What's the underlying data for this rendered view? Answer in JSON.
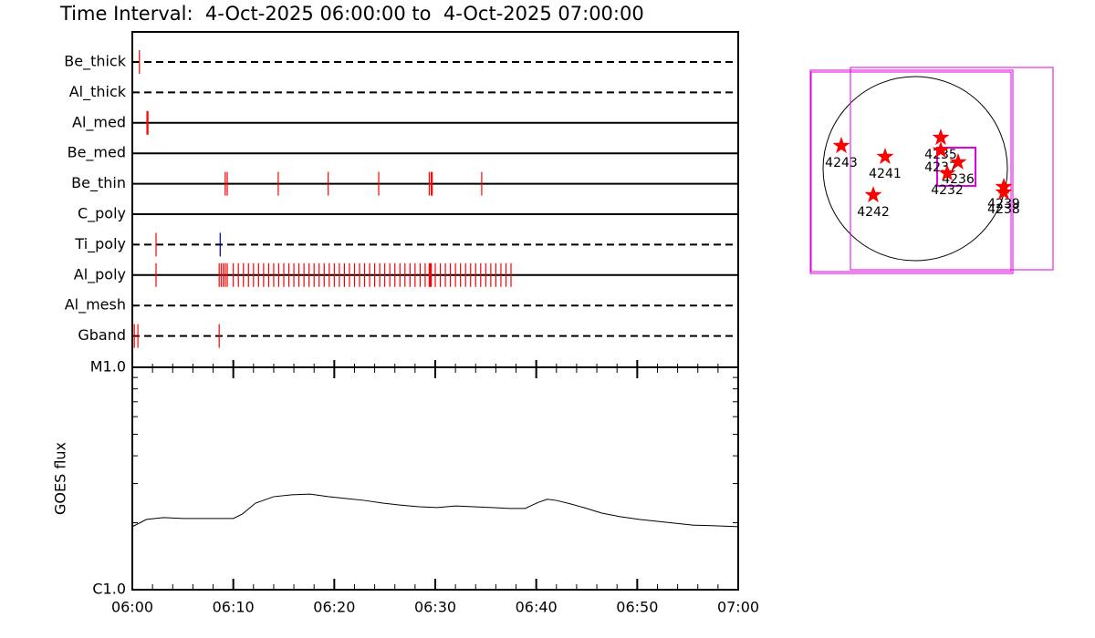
{
  "title": "Time Interval:  4-Oct-2025 06:00:00 to  4-Oct-2025 07:00:00",
  "chart_data": [
    {
      "type": "timeline",
      "xlim": [
        0,
        60
      ],
      "color": "#ff0000",
      "rows": [
        {
          "name": "Be_thick",
          "line": "dashed",
          "events": [
            0.7
          ]
        },
        {
          "name": "Al_thick",
          "line": "dashed",
          "events": []
        },
        {
          "name": "Al_med",
          "line": "solid",
          "events": [
            1.45,
            1.55
          ]
        },
        {
          "name": "Be_med",
          "line": "solid",
          "events": []
        },
        {
          "name": "Be_thin",
          "line": "solid",
          "events": [
            9.2,
            9.4,
            14.45,
            19.4,
            24.4,
            29.4,
            29.6,
            29.7,
            34.6
          ]
        },
        {
          "name": "C_poly",
          "line": "solid",
          "events": []
        },
        {
          "name": "Ti_poly",
          "line": "dashed",
          "events": [
            2.35,
            8.7
          ],
          "event_colors": [
            "#ff0000",
            "#00008b"
          ]
        },
        {
          "name": "Al_poly",
          "line": "solid",
          "events": [
            2.35,
            8.6,
            8.8,
            9.0,
            9.2,
            9.4,
            10,
            10.5,
            11,
            11.5,
            12,
            12.5,
            13,
            13.5,
            14,
            14.5,
            15,
            15.5,
            16,
            16.5,
            17,
            17.5,
            18,
            18.5,
            19,
            19.5,
            20,
            20.5,
            21,
            21.5,
            22,
            22.5,
            23,
            23.5,
            24,
            24.5,
            25,
            25.5,
            26,
            26.5,
            27,
            27.5,
            28,
            28.5,
            29,
            29.4,
            29.5,
            29.6,
            30,
            30.5,
            31,
            31.5,
            32,
            32.5,
            33,
            33.5,
            34,
            34.5,
            35,
            35.5,
            36,
            36.5,
            37,
            37.5
          ]
        },
        {
          "name": "Al_mesh",
          "line": "dashed",
          "events": []
        },
        {
          "name": "Gband",
          "line": "dashed",
          "events": [
            0.2,
            0.55,
            8.6
          ]
        }
      ]
    },
    {
      "type": "line",
      "ylabel": "GOES flux",
      "color": "#000000",
      "log_y": true,
      "x": [
        0,
        1.4,
        3.1,
        5,
        6.8,
        10,
        10.9,
        12.2,
        14,
        15.8,
        17.6,
        19.4,
        21.2,
        23,
        24.8,
        26.6,
        28.4,
        30.2,
        32,
        33.8,
        35.6,
        37.4,
        38.9,
        40.2,
        41.1,
        42,
        43.4,
        44.7,
        46.5,
        48.3,
        50.2,
        52,
        53.8,
        55.6,
        57.4,
        60
      ],
      "values": [
        1.92e-06,
        2.07e-06,
        2.11e-06,
        2.09e-06,
        2.09e-06,
        2.09e-06,
        2.19e-06,
        2.45e-06,
        2.62e-06,
        2.67e-06,
        2.69e-06,
        2.62e-06,
        2.57e-06,
        2.52e-06,
        2.45e-06,
        2.4e-06,
        2.36e-06,
        2.34e-06,
        2.38e-06,
        2.36e-06,
        2.34e-06,
        2.32e-06,
        2.32e-06,
        2.47e-06,
        2.55e-06,
        2.52e-06,
        2.43e-06,
        2.34e-06,
        2.21e-06,
        2.13e-06,
        2.07e-06,
        2.03e-06,
        1.99e-06,
        1.95e-06,
        1.94e-06,
        1.92e-06
      ],
      "ylim": [
        1e-06,
        1e-05
      ],
      "yticks": [
        {
          "value": 1e-06,
          "label": "C1.0"
        },
        {
          "value": 1e-05,
          "label": "M1.0"
        }
      ],
      "minor_yticks": [
        2e-06,
        3e-06,
        4e-06,
        5e-06,
        6e-06,
        7e-06,
        8e-06,
        9e-06
      ],
      "xlim": [
        0,
        60
      ],
      "xticks": [
        {
          "value": 0,
          "label": "06:00"
        },
        {
          "value": 10,
          "label": "06:10"
        },
        {
          "value": 20,
          "label": "06:20"
        },
        {
          "value": 30,
          "label": "06:30"
        },
        {
          "value": 40,
          "label": "06:40"
        },
        {
          "value": 50,
          "label": "06:50"
        },
        {
          "value": 60,
          "label": "07:00"
        }
      ],
      "minor_xticks": [
        2,
        4,
        6,
        8,
        12,
        14,
        16,
        18,
        22,
        24,
        26,
        28,
        32,
        34,
        36,
        38,
        42,
        44,
        46,
        48,
        52,
        54,
        56,
        58
      ]
    },
    {
      "type": "map",
      "color": "#ff0000",
      "points": [
        {
          "label": "4243",
          "x": -770,
          "y": 238
        },
        {
          "label": "4241",
          "x": -314,
          "y": 124
        },
        {
          "label": "4235",
          "x": 266,
          "y": 323
        },
        {
          "label": "4237",
          "x": 266,
          "y": 190
        },
        {
          "label": "4236",
          "x": 447,
          "y": 67
        },
        {
          "label": "4232",
          "x": 333,
          "y": -48
        },
        {
          "label": "4242",
          "x": -437,
          "y": -276
        },
        {
          "label": "4239",
          "x": 922,
          "y": -190
        },
        {
          "label": "4238",
          "x": 922,
          "y": -247
        }
      ]
    }
  ]
}
